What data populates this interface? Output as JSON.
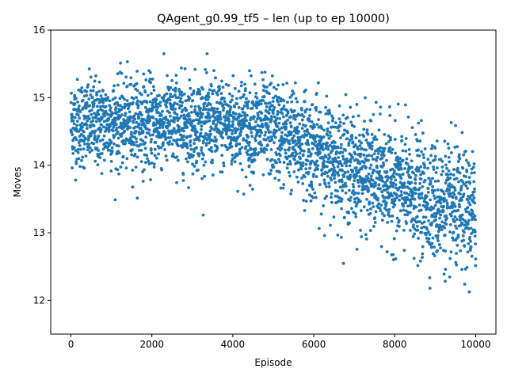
{
  "chart_data": {
    "type": "scatter",
    "title": "QAgent_g0.99_tf5 – len (up to ep 10000)",
    "xlabel": "Episode",
    "ylabel": "Moves",
    "xlim": [
      -500,
      10500
    ],
    "ylim": [
      11.5,
      16.0
    ],
    "x_ticks": [
      0,
      2000,
      4000,
      6000,
      8000,
      10000
    ],
    "y_ticks": [
      12,
      13,
      14,
      15,
      16
    ],
    "grid": false,
    "legend": "none",
    "point_color": "#1f77b4",
    "series": [
      {
        "trend": [
          {
            "x": 0,
            "y": 14.62
          },
          {
            "x": 1000,
            "y": 14.62
          },
          {
            "x": 2000,
            "y": 14.63
          },
          {
            "x": 3000,
            "y": 14.62
          },
          {
            "x": 4000,
            "y": 14.6
          },
          {
            "x": 5000,
            "y": 14.52
          },
          {
            "x": 6000,
            "y": 14.25
          },
          {
            "x": 7000,
            "y": 13.95
          },
          {
            "x": 8000,
            "y": 13.7
          },
          {
            "x": 9000,
            "y": 13.45
          },
          {
            "x": 10000,
            "y": 13.25
          }
        ],
        "spread": [
          {
            "x": 0,
            "y": 0.32
          },
          {
            "x": 4000,
            "y": 0.34
          },
          {
            "x": 6000,
            "y": 0.38
          },
          {
            "x": 8000,
            "y": 0.42
          },
          {
            "x": 10000,
            "y": 0.45
          }
        ],
        "episodes": 10000
      }
    ]
  }
}
